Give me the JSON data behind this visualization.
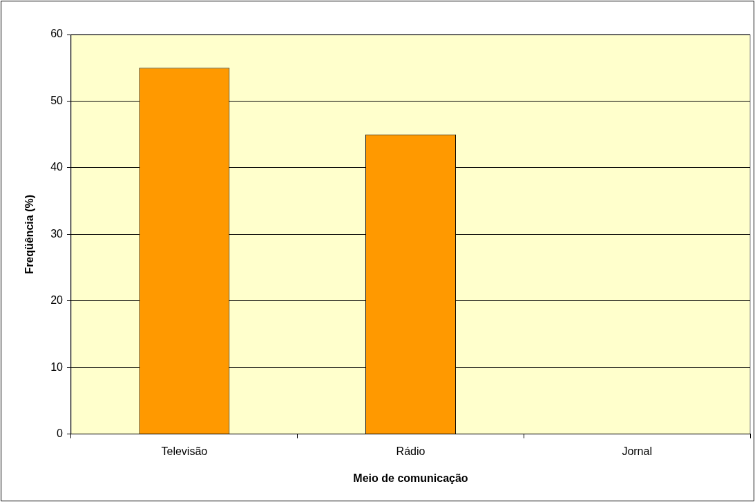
{
  "chart_data": {
    "type": "bar",
    "xlabel": "Meio de comunicação",
    "ylabel": "Freqüência (%)",
    "categories": [
      "Televisão",
      "Rádio",
      "Jornal"
    ],
    "values": [
      55,
      45,
      0
    ],
    "color": "#ff9900",
    "ylim": [
      0,
      60
    ],
    "yticks": [
      0,
      10,
      20,
      30,
      40,
      50,
      60
    ],
    "grid": "y",
    "legend": false
  }
}
